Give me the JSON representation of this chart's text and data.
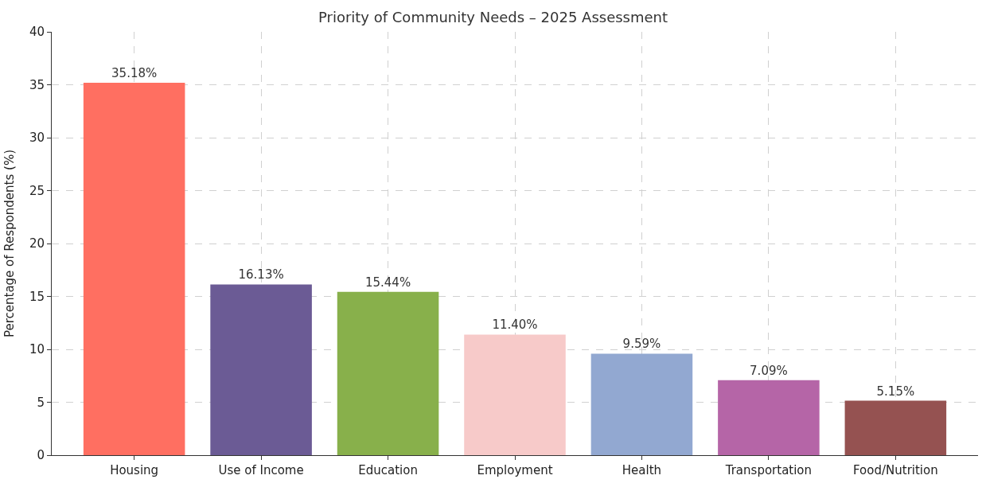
{
  "chart_data": {
    "type": "bar",
    "title": "Priority of Community Needs – 2025 Assessment",
    "ylabel": "Percentage of Respondents (%)",
    "categories": [
      "Housing",
      "Use of Income",
      "Education",
      "Employment",
      "Health",
      "Transportation",
      "Food/Nutrition"
    ],
    "values": [
      35.18,
      16.13,
      15.44,
      11.4,
      9.59,
      7.09,
      5.15
    ],
    "value_labels": [
      "35.18%",
      "16.13%",
      "15.44%",
      "11.40%",
      "9.59%",
      "7.09%",
      "5.15%"
    ],
    "colors": [
      "#ff6f61",
      "#6b5b95",
      "#88b04b",
      "#f7cac9",
      "#92a8d1",
      "#b565a7",
      "#955251"
    ],
    "ylim": [
      0,
      40
    ],
    "yticks": [
      0,
      5,
      10,
      15,
      20,
      25,
      30,
      35,
      40
    ],
    "grid": true
  }
}
